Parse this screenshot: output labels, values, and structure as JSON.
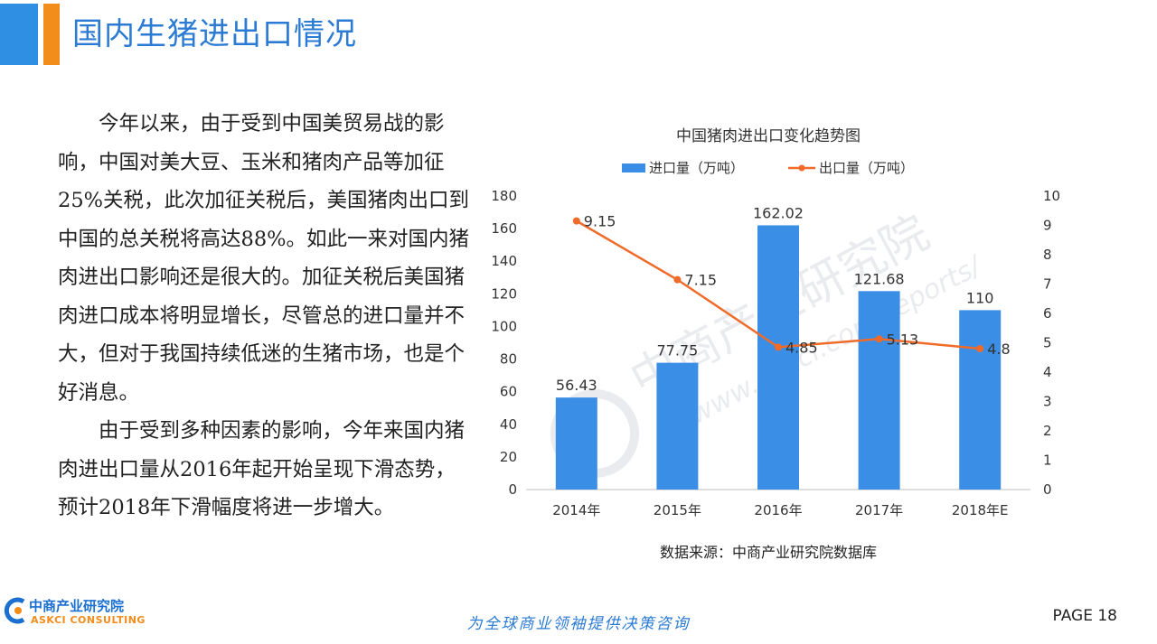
{
  "header": {
    "title": "国内生猪进出口情况"
  },
  "body": {
    "paragraphs": [
      "今年以来，由于受到中国美贸易战的影响，中国对美大豆、玉米和猪肉产品等加征25%关税，此次加征关税后，美国猪肉出口到中国的总关税将高达88%。如此一来对国内猪肉进出口影响还是很大的。加征关税后美国猪肉进口成本将明显增长，尽管总的进口量并不大，但对于我国持续低迷的生猪市场，也是个好消息。",
      "由于受到多种因素的影响，今年来国内猪肉进出口量从2016年起开始呈现下滑态势，预计2018年下滑幅度将进一步增大。"
    ]
  },
  "chart_data": {
    "type": "bar",
    "title": "中国猪肉进出口变化趋势图",
    "categories": [
      "2014年",
      "2015年",
      "2016年",
      "2017年",
      "2018年E"
    ],
    "series": [
      {
        "name": "进口量（万吨）",
        "type": "bar",
        "axis": "left",
        "values": [
          56.43,
          77.75,
          162.02,
          121.68,
          110
        ],
        "labels": [
          "56.43",
          "77.75",
          "162.02",
          "121.68",
          "110"
        ],
        "color": "#3a8ee6"
      },
      {
        "name": "出口量（万吨）",
        "type": "line",
        "axis": "right",
        "values": [
          9.15,
          7.15,
          4.85,
          5.13,
          4.8
        ],
        "labels": [
          "9.15",
          "7.15",
          "4.85",
          "5.13",
          "4.8"
        ],
        "color": "#f06a2a"
      }
    ],
    "left_axis": {
      "min": 0,
      "max": 180,
      "step": 20,
      "ticks": [
        "0",
        "20",
        "40",
        "60",
        "80",
        "100",
        "120",
        "140",
        "160",
        "180"
      ]
    },
    "right_axis": {
      "min": 0,
      "max": 10,
      "step": 1,
      "ticks": [
        "0",
        "1",
        "2",
        "3",
        "4",
        "5",
        "6",
        "7",
        "8",
        "9",
        "10"
      ]
    },
    "legend_position": "top",
    "grid": false
  },
  "source": "数据来源：中商产业研究院数据库",
  "watermark": {
    "cn": "中商产业研究院",
    "url": "www.askci.com/reports/"
  },
  "footer": {
    "logo_cn": "中商产业研究院",
    "logo_en": "ASKCI CONSULTING",
    "slogan": "为全球商业领袖提供决策咨询",
    "page": "PAGE 18"
  }
}
